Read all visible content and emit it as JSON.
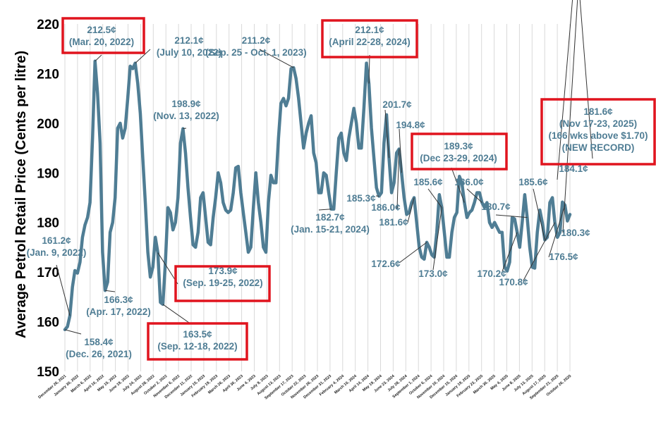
{
  "chart_data": {
    "type": "line",
    "ylabel": "Average Petrol Retail Price (Cents per litre)",
    "ylim": [
      150,
      220
    ],
    "yticks": [
      150,
      160,
      170,
      180,
      190,
      200,
      210,
      220
    ],
    "grid": "vertical",
    "xticks": [
      "December 26, 2021",
      "January 30, 2022",
      "March 6, 2022",
      "April 10, 2022",
      "May 15, 2022",
      "June 19, 2022",
      "July 24, 2022",
      "August 28, 2022",
      "October 2, 2022",
      "November 6, 2022",
      "December 11, 2022",
      "January 15, 2023",
      "February 19, 2023",
      "March 26, 2023",
      "April 30, 2023",
      "June 4, 2023",
      "July 9, 2023",
      "August 13, 2023",
      "September 17, 2023",
      "October 22, 2023",
      "November 26, 2023",
      "December 31, 2023",
      "February 4, 2024",
      "March 10, 2024",
      "April 14, 2024",
      "May 19, 2024",
      "June 23, 2024",
      "July 28, 2024",
      "September 1, 2024",
      "October 6, 2024",
      "November 10, 2024",
      "December 15, 2024",
      "January 19, 2025",
      "February 23, 2025",
      "March 30, 2025",
      "May 4, 2025",
      "June 8, 2025",
      "July 13, 2025",
      "August 17, 2025",
      "September 21, 2025",
      "October 26, 2025"
    ],
    "values": [
      158.4,
      159.0,
      161.2,
      167.0,
      170.3,
      169.8,
      172.0,
      177.0,
      179.5,
      181.0,
      184.0,
      197.0,
      212.5,
      206.0,
      196.0,
      174.0,
      166.3,
      168.0,
      178.0,
      180.0,
      185.0,
      199.0,
      200.0,
      197.0,
      199.0,
      205.0,
      211.5,
      211.0,
      212.1,
      208.0,
      202.0,
      193.0,
      184.0,
      174.0,
      169.0,
      171.0,
      177.0,
      173.9,
      163.9,
      163.5,
      172.0,
      183.0,
      182.0,
      178.5,
      180.0,
      185.0,
      196.0,
      198.9,
      194.0,
      187.0,
      181.0,
      175.5,
      175.0,
      178.0,
      185.0,
      186.0,
      181.0,
      176.0,
      175.5,
      181.0,
      185.0,
      190.0,
      188.0,
      184.0,
      182.5,
      182.0,
      182.5,
      186.0,
      191.0,
      191.3,
      186.0,
      182.0,
      178.0,
      174.0,
      175.0,
      183.0,
      190.0,
      184.0,
      180.0,
      175.0,
      174.0,
      184.0,
      189.5,
      188.0,
      188.0,
      197.0,
      204.0,
      205.0,
      203.5,
      205.0,
      211.0,
      211.2,
      209.0,
      205.0,
      200.0,
      195.0,
      198.0,
      200.0,
      201.5,
      194.0,
      192.0,
      186.0,
      186.0,
      190.0,
      189.5,
      186.0,
      182.7,
      182.7,
      190.0,
      197.0,
      198.0,
      194.0,
      192.5,
      197.0,
      200.0,
      203.0,
      200.0,
      195.0,
      195.0,
      203.0,
      212.1,
      208.0,
      199.0,
      193.0,
      187.0,
      185.3,
      186.0,
      196.0,
      201.7,
      193.0,
      186.0,
      188.0,
      194.0,
      194.8,
      190.0,
      185.0,
      181.6,
      182.0,
      184.0,
      185.0,
      180.0,
      175.0,
      173.0,
      172.6,
      176.0,
      175.0,
      173.5,
      173.0,
      178.0,
      185.6,
      183.0,
      178.0,
      173.0,
      173.0,
      178.0,
      181.0,
      182.0,
      189.3,
      188.0,
      184.0,
      181.0,
      182.0,
      182.5,
      184.0,
      186.0,
      186.0,
      184.0,
      183.0,
      184.0,
      180.0,
      179.0,
      180.0,
      179.0,
      178.0,
      178.0,
      171.0,
      170.2,
      172.0,
      181.0,
      180.7,
      178.0,
      175.0,
      180.0,
      185.6,
      181.0,
      175.0,
      171.0,
      170.8,
      178.0,
      182.5,
      180.0,
      176.5,
      177.0,
      184.0,
      185.0,
      180.0,
      177.0,
      178.0,
      184.1,
      183.5,
      180.3,
      181.6
    ]
  },
  "annotations": [
    {
      "value": "161.2¢",
      "date": "(Jan. 9, 2022)",
      "boxed": false
    },
    {
      "value": "158.4¢",
      "date": "(Dec. 26, 2021)",
      "boxed": false
    },
    {
      "value": "212.5¢",
      "date": "(Mar. 20, 2022)",
      "boxed": true
    },
    {
      "value": "166.3¢",
      "date": "(Apr. 17, 2022)",
      "boxed": false
    },
    {
      "value": "212.1¢",
      "date": "(July 10, 2022)",
      "boxed": false
    },
    {
      "value": "198.9¢",
      "date": "(Nov. 13, 2022)",
      "boxed": false
    },
    {
      "value": "173.9¢",
      "date": "(Sep. 19-25, 2022)",
      "boxed": true
    },
    {
      "value": "163.5¢",
      "date": "(Sep. 12-18, 2022)",
      "boxed": true
    },
    {
      "value": "211.2¢",
      "date": "(Sep. 25 - Oct. 1, 2023)",
      "boxed": false
    },
    {
      "value": "182.7¢",
      "date": "(Jan. 15-21, 2024)",
      "boxed": false
    },
    {
      "value": "212.1¢",
      "date": "(April 22-28, 2024)",
      "boxed": true
    },
    {
      "value": "201.7¢",
      "date": "",
      "boxed": false
    },
    {
      "value": "185.3¢",
      "date": "",
      "boxed": false
    },
    {
      "value": "186.0¢",
      "date": "",
      "boxed": false
    },
    {
      "value": "194.8¢",
      "date": "",
      "boxed": false
    },
    {
      "value": "181.6¢",
      "date": "",
      "boxed": false
    },
    {
      "value": "189.3¢",
      "date": "(Dec 23-29, 2024)",
      "boxed": true
    },
    {
      "value": "185.6¢",
      "date": "",
      "boxed": false
    },
    {
      "value": "186.0¢",
      "date": "",
      "boxed": false
    },
    {
      "value": "172.6¢",
      "date": "",
      "boxed": false
    },
    {
      "value": "173.0¢",
      "date": "",
      "boxed": false
    },
    {
      "value": "180.7¢",
      "date": "",
      "boxed": false
    },
    {
      "value": "185.6¢",
      "date": "",
      "boxed": false
    },
    {
      "value": "170.2¢",
      "date": "",
      "boxed": false
    },
    {
      "value": "170.8¢",
      "date": "",
      "boxed": false
    },
    {
      "value": "184.1¢",
      "date": "",
      "boxed": false
    },
    {
      "value": "176.5¢",
      "date": "",
      "boxed": false
    },
    {
      "value": "180.3¢",
      "date": "",
      "boxed": false
    },
    {
      "value": "181.6¢",
      "date": "(Nov 17-23, 2025)",
      "extra": [
        "(166 wks above $1.70)",
        "(NEW RECORD)"
      ],
      "boxed": true
    }
  ],
  "colors": {
    "series": "#4f7d94",
    "highlight_box": "#e0141e",
    "grid": "#d9d9d9",
    "label_text": "#4f7d94"
  }
}
